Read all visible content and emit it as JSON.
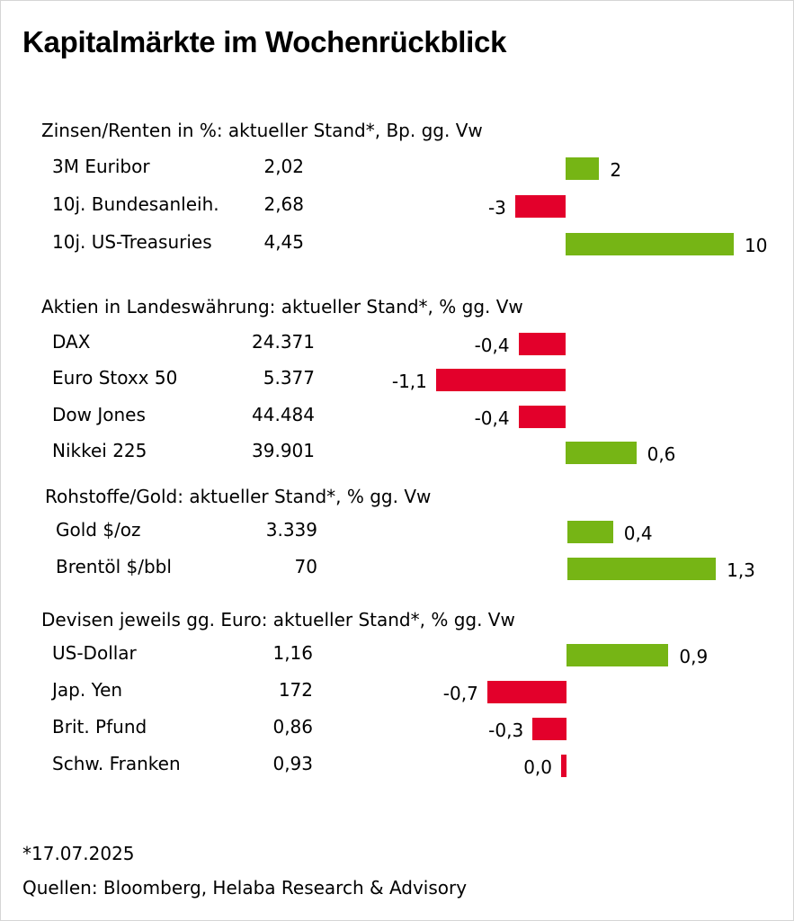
{
  "title": "Kapitalmärkte im Wochenrückblick",
  "colors": {
    "positive": "#76b515",
    "negative": "#e3002b"
  },
  "chart_data": {
    "type": "bar",
    "orientation": "horizontal",
    "title": "Kapitalmärkte im Wochenrückblick",
    "sections": [
      {
        "title": "Zinsen/Renten in %: aktueller Stand*, Bp. gg. Vw",
        "unit": "Bp.",
        "rows": [
          {
            "label": "3M Euribor",
            "value_text": "2,02",
            "change": 2,
            "change_text": "2"
          },
          {
            "label": "10j. Bundesanleih.",
            "value_text": "2,68",
            "change": -3,
            "change_text": "-3"
          },
          {
            "label": "10j. US-Treasuries",
            "value_text": "4,45",
            "change": 10,
            "change_text": "10"
          }
        ]
      },
      {
        "title": "Aktien in Landeswährung: aktueller Stand*, % gg. Vw",
        "unit": "%",
        "rows": [
          {
            "label": "DAX",
            "value_text": "24.371",
            "change": -0.4,
            "change_text": "-0,4"
          },
          {
            "label": "Euro Stoxx 50",
            "value_text": "5.377",
            "change": -1.1,
            "change_text": "-1,1"
          },
          {
            "label": "Dow Jones",
            "value_text": "44.484",
            "change": -0.4,
            "change_text": "-0,4"
          },
          {
            "label": "Nikkei 225",
            "value_text": "39.901",
            "change": 0.6,
            "change_text": "0,6"
          }
        ]
      },
      {
        "title": "Rohstoffe/Gold: aktueller Stand*, % gg. Vw",
        "unit": "%",
        "rows": [
          {
            "label": "Gold $/oz",
            "value_text": "3.339",
            "change": 0.4,
            "change_text": "0,4"
          },
          {
            "label": "Brentöl $/bbl",
            "value_text": "70",
            "change": 1.3,
            "change_text": "1,3"
          }
        ]
      },
      {
        "title": "Devisen jeweils gg. Euro: aktueller Stand*, % gg. Vw",
        "unit": "%",
        "rows": [
          {
            "label": "US-Dollar",
            "value_text": "1,16",
            "change": 0.9,
            "change_text": "0,9"
          },
          {
            "label": "Jap. Yen",
            "value_text": "172",
            "change": -0.7,
            "change_text": "-0,7"
          },
          {
            "label": "Brit. Pfund",
            "value_text": "0,86",
            "change": -0.3,
            "change_text": "-0,3"
          },
          {
            "label": "Schw. Franken",
            "value_text": "0,93",
            "change": 0.0,
            "change_text": "0,0"
          }
        ]
      }
    ]
  },
  "footnotes": {
    "date": "*17.07.2025",
    "sources": "Quellen: Bloomberg, Helaba Research & Advisory"
  }
}
